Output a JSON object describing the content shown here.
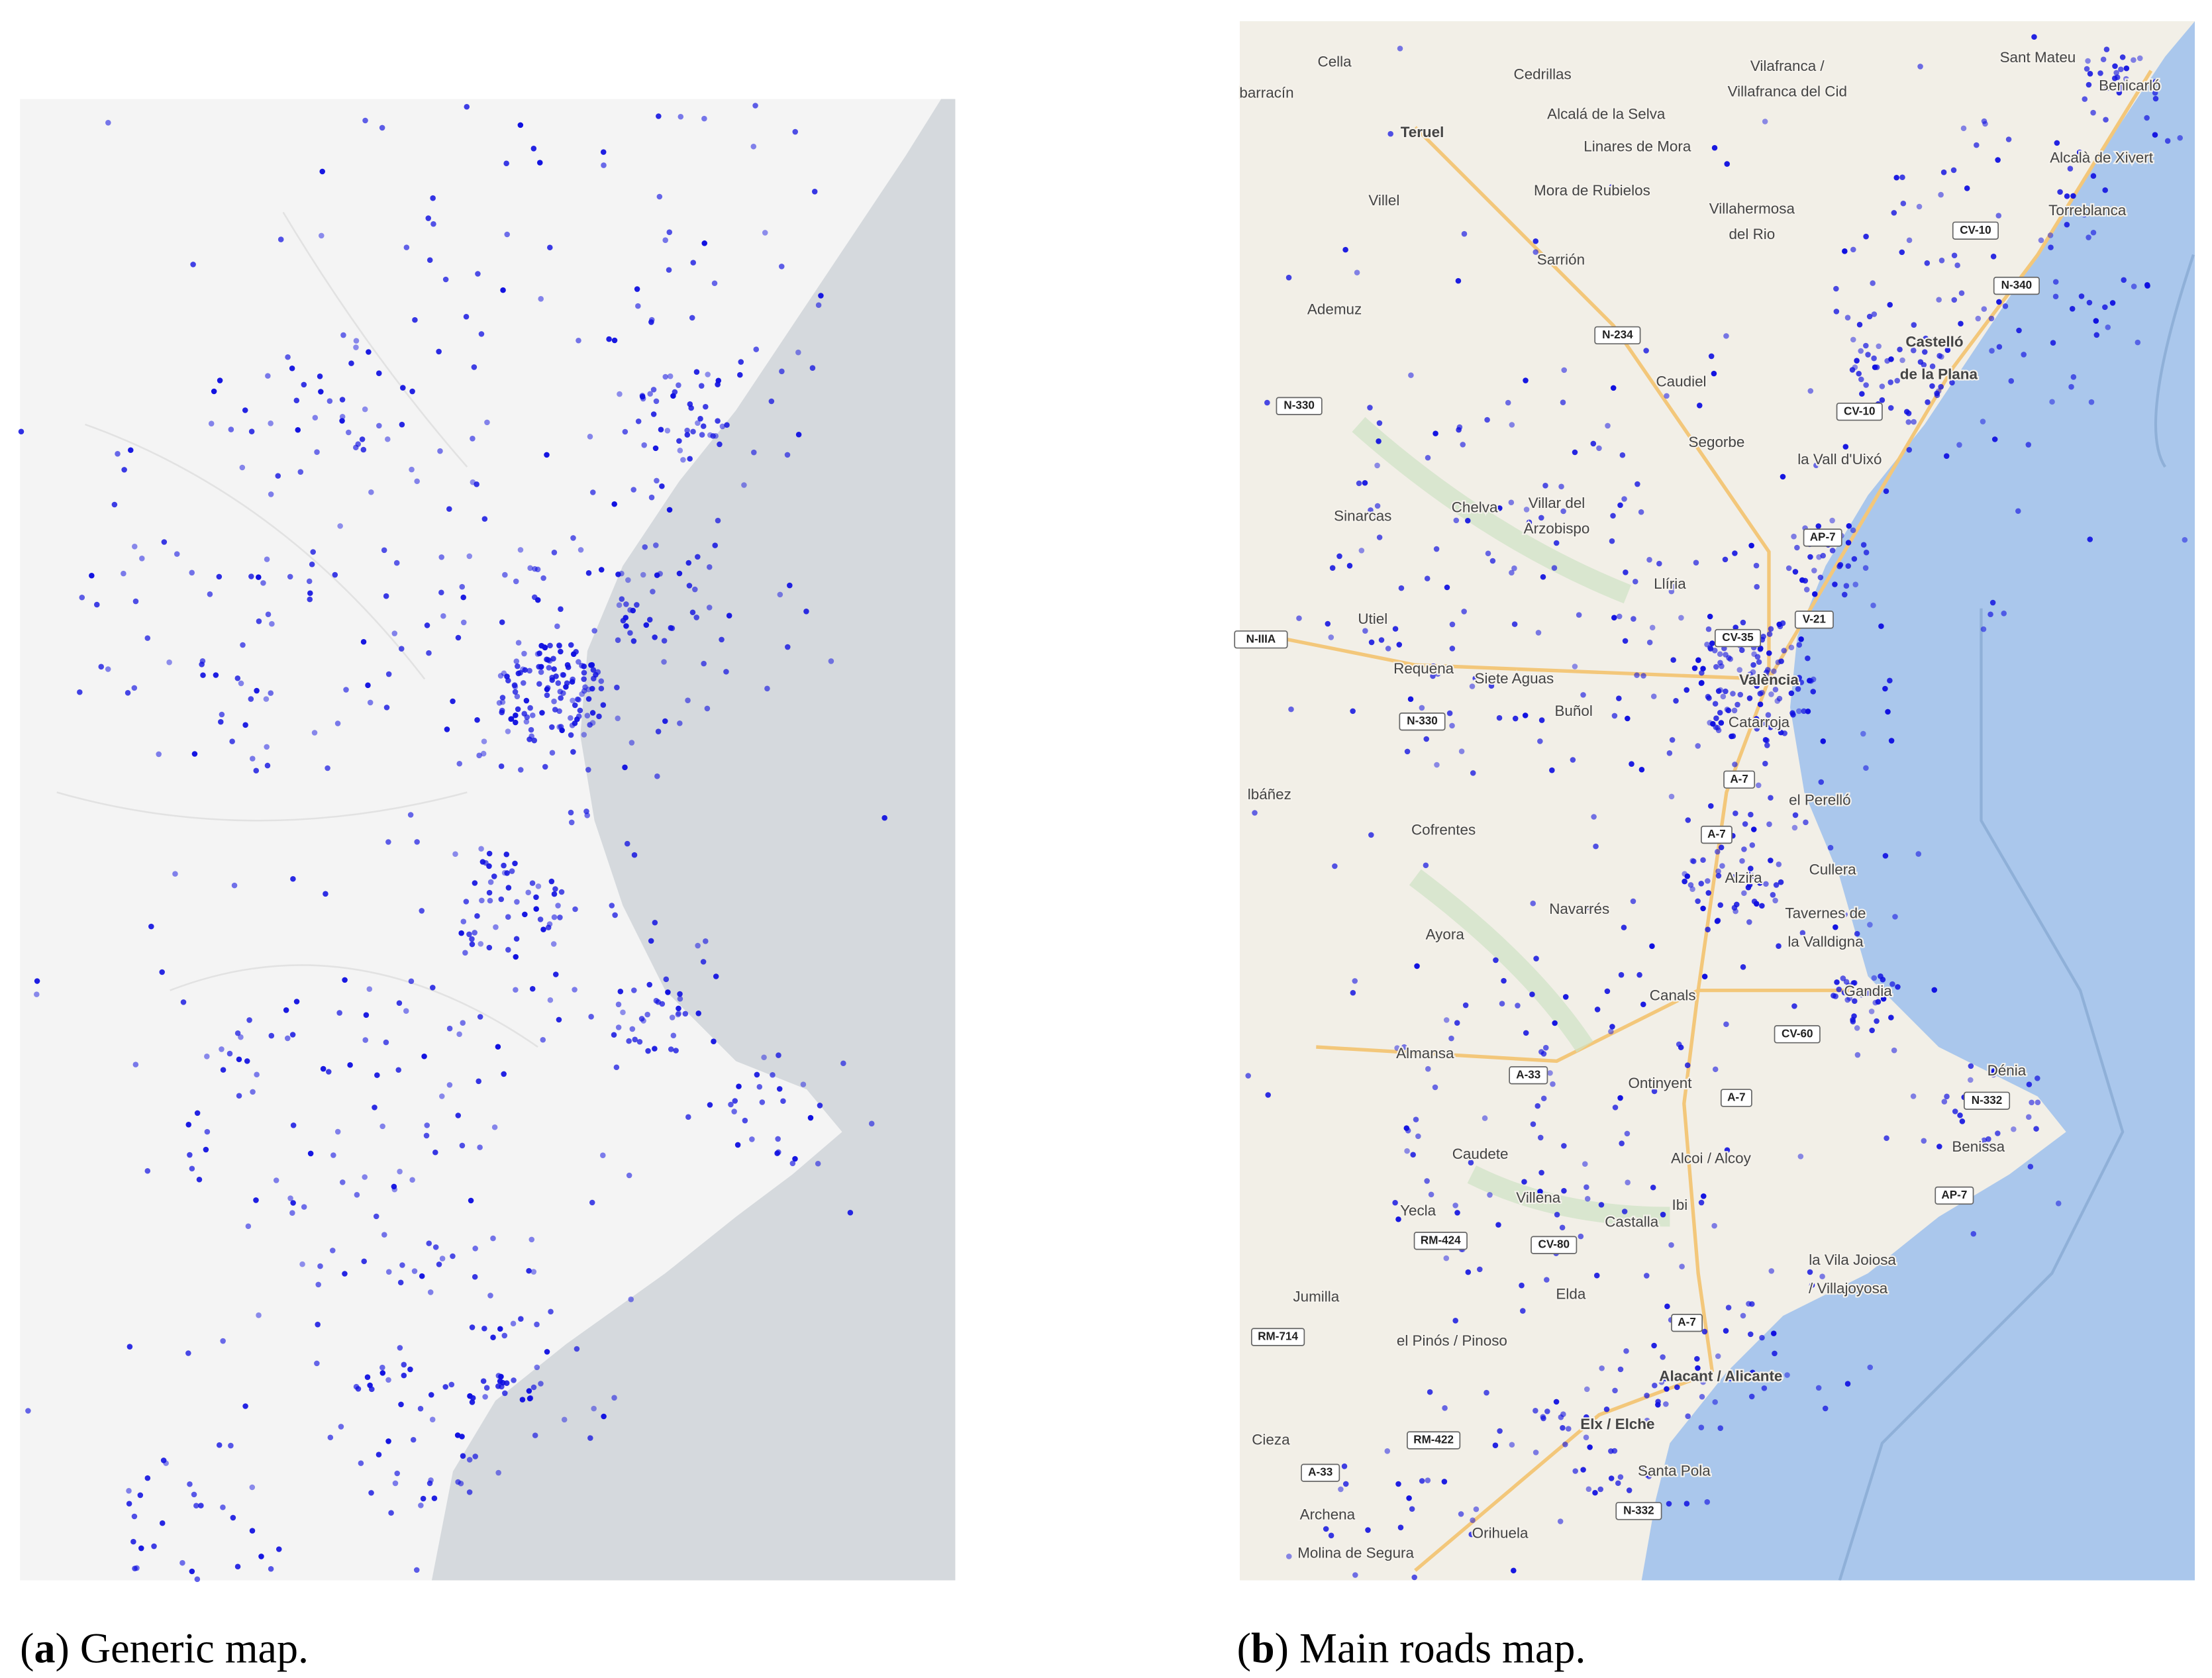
{
  "captions": [
    {
      "prefix": "(",
      "letter": "a",
      "suffix": ") Generic map."
    },
    {
      "prefix": "(",
      "letter": "b",
      "suffix": ") Main roads map."
    }
  ],
  "map_b": {
    "places": [
      "Cella",
      "Cedrillas",
      "Vilafranca /",
      "Villafranca del Cid",
      "Sant Mateu",
      "Benicarló",
      "barracín",
      "Alcalá de la Selva",
      "Teruel",
      "Linares de Mora",
      "Alcalà de Xivert",
      "Mora de Rubielos",
      "Villel",
      "Villahermosa",
      "del Rio",
      "Torreblanca",
      "Sarrión",
      "Ademuz",
      "Castelló",
      "de la Plana",
      "Caudiel",
      "Segorbe",
      "la Vall d'Uixó",
      "Chelva",
      "Villar del",
      "Arzobispo",
      "Sinarcas",
      "Llíria",
      "Utiel",
      "Requena",
      "Siete Aguas",
      "València",
      "Buñol",
      "Catarroja",
      "lbáñez",
      "el Perelló",
      "Cofrentes",
      "Alzira",
      "Cullera",
      "Navarrés",
      "Tavernes de",
      "la Valldigna",
      "Ayora",
      "Gandia",
      "Canals",
      "Almansa",
      "Dénia",
      "Ontinyent",
      "Alcoi / Alcoy",
      "Benissa",
      "Caudete",
      "Villena",
      "Yecla",
      "Ibi",
      "Castalla",
      "la Vila Joiosa",
      "/ Villajoyosa",
      "Jumilla",
      "Elda",
      "el Pinós / Pinoso",
      "Alacant / Alicante",
      "Elx / Elche",
      "Cieza",
      "Santa Pola",
      "Archena",
      "Orihuela",
      "Molina de Segura"
    ],
    "roads": [
      "N-234",
      "N-330",
      "CV-10",
      "CV-10",
      "N-340",
      "AP-7",
      "V-21",
      "CV-35",
      "N-IIIA",
      "N-330",
      "A-7",
      "A-7",
      "CV-60",
      "A-33",
      "A-7",
      "N-332",
      "AP-7",
      "RM-424",
      "CV-80",
      "A-7",
      "RM-714",
      "RM-422",
      "N-332",
      "A-33"
    ]
  }
}
